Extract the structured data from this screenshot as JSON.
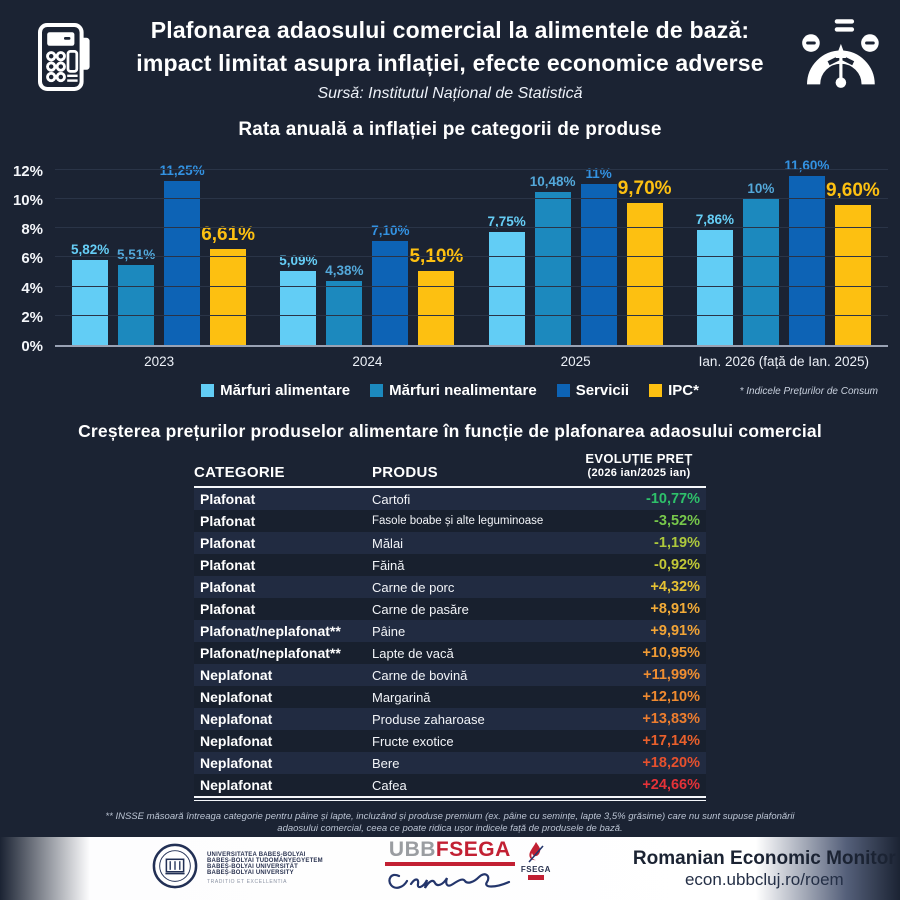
{
  "header": {
    "title_line1": "Plafonarea adaosului comercial la alimentele de bază:",
    "title_line2": "impact limitat asupra inflației, efecte economice adverse",
    "source": "Sursă: Institutul Național de Statistică"
  },
  "chart_data": {
    "type": "bar",
    "title": "Rata anuală a inflației pe categorii de produse",
    "categories": [
      "2023",
      "2024",
      "2025",
      "Ian. 2026 (față de Ian. 2025)"
    ],
    "series": [
      {
        "name": "Mărfuri alimentare",
        "color": "#62CDF5",
        "label_color": "#66CEF6",
        "values": [
          5.82,
          5.09,
          7.75,
          7.86
        ],
        "labels": [
          "5,82%",
          "5,09%",
          "7,75%",
          "7,86%"
        ]
      },
      {
        "name": "Mărfuri nealimentare",
        "color": "#1C89BE",
        "label_color": "#53A8DA",
        "values": [
          5.51,
          4.38,
          10.48,
          10.0
        ],
        "labels": [
          "5,51%",
          "4,38%",
          "10,48%",
          "10%"
        ]
      },
      {
        "name": "Servicii",
        "color": "#0D63B5",
        "label_color": "#3392E2",
        "values": [
          11.25,
          7.1,
          11.0,
          11.6
        ],
        "labels": [
          "11,25%",
          "7,10%",
          "11%",
          "11,60%"
        ]
      },
      {
        "name": "IPC*",
        "color": "#FDC011",
        "label_color": "#FDC011",
        "values": [
          6.61,
          5.1,
          9.7,
          9.6
        ],
        "labels": [
          "6,61%",
          "5,10%",
          "9,70%",
          "9,60%"
        ]
      }
    ],
    "ylim": [
      0,
      12
    ],
    "yticks": [
      "0%",
      "2%",
      "4%",
      "6%",
      "8%",
      "10%",
      "12%"
    ],
    "grid": true,
    "legend_position": "bottom",
    "legend_note": "* Indicele Prețurilor de Consum"
  },
  "table": {
    "title": "Creșterea prețurilor produselor alimentare în funcție de plafonarea adaosului comercial",
    "headers": {
      "category": "CATEGORIE",
      "product": "PRODUS",
      "evolution": "EVOLUȚIE PREȚ",
      "evolution_sub": "(2026 ian/2025 ian)"
    },
    "rows": [
      {
        "category": "Plafonat",
        "product": "Cartofi",
        "change": "-10,77%",
        "color": "#2EC06A"
      },
      {
        "category": "Plafonat",
        "product": "Fasole boabe și alte leguminoase",
        "change": "-3,52%",
        "color": "#77C74B"
      },
      {
        "category": "Plafonat",
        "product": "Mălai",
        "change": "-1,19%",
        "color": "#AEC93C"
      },
      {
        "category": "Plafonat",
        "product": "Făină",
        "change": "-0,92%",
        "color": "#C2C837"
      },
      {
        "category": "Plafonat",
        "product": "Carne de porc",
        "change": "+4,32%",
        "color": "#E6C233"
      },
      {
        "category": "Plafonat",
        "product": "Carne de pasăre",
        "change": "+8,91%",
        "color": "#F2AB38"
      },
      {
        "category": "Plafonat/neplafonat**",
        "product": "Pâine",
        "change": "+9,91%",
        "color": "#F2A436"
      },
      {
        "category": "Plafonat/neplafonat**",
        "product": "Lapte de vacă",
        "change": "+10,95%",
        "color": "#F19B34"
      },
      {
        "category": "Neplafonat",
        "product": "Carne de bovină",
        "change": "+11,99%",
        "color": "#F08E31"
      },
      {
        "category": "Neplafonat",
        "product": "Margarină",
        "change": "+12,10%",
        "color": "#EF8A30"
      },
      {
        "category": "Neplafonat",
        "product": "Produse zaharoase",
        "change": "+13,83%",
        "color": "#ED7D2E"
      },
      {
        "category": "Neplafonat",
        "product": "Fructe exotice",
        "change": "+17,14%",
        "color": "#E8602C"
      },
      {
        "category": "Neplafonat",
        "product": "Bere",
        "change": "+18,20%",
        "color": "#E7512D"
      },
      {
        "category": "Neplafonat",
        "product": "Cafea",
        "change": "+24,66%",
        "color": "#E43238"
      }
    ],
    "footnote": "** INSSE măsoară întreaga categorie pentru pâine și lapte, incluzând și produse premium (ex. pâine cu semințe, lapte 3,5% grăsime) care nu sunt supuse plafonării adaosului comercial, ceea ce poate ridica ușor indicele față de produsele de bază."
  },
  "footer": {
    "ubb_lines": [
      "UNIVERSITATEA BABEȘ-BOLYAI",
      "BABEȘ-BOLYAI TUDOMÁNYEGYETEM",
      "BABEȘ-BOLYAI UNIVERSITÄT",
      "BABEȘ-BOLYAI UNIVERSITY"
    ],
    "ubb_motto": "TRADITIO ET EXCELLENTIA",
    "fsega_logo": {
      "ubb": "UBB",
      "fsega": "FSEGA",
      "emblem_label": "FSEGA"
    },
    "rem_title": "Romanian Economic Monitor",
    "rem_url": "econ.ubbcluj.ro/roem"
  },
  "colors": {
    "background": "#1B2333",
    "gridline": "#2A3447",
    "axis_line": "#99A2B4",
    "accent_yellow": "#FDC011",
    "fsega_red": "#C22033"
  }
}
